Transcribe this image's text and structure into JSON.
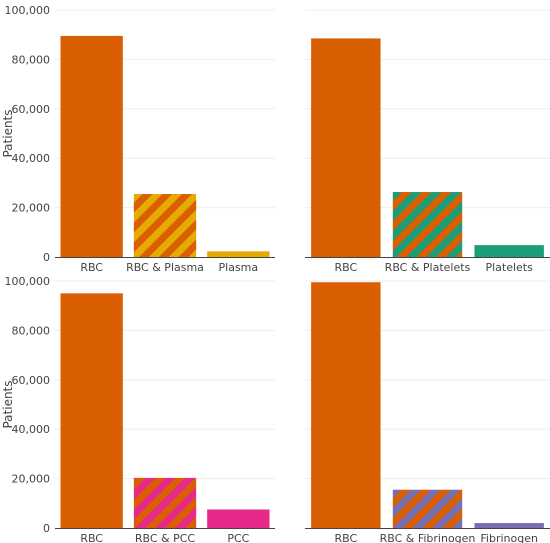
{
  "colors": {
    "rbc": "#d95f02",
    "plasma": "#e6ab02",
    "platelets": "#1b9e77",
    "pcc": "#e7298a",
    "fibrinogen": "#7570b3"
  },
  "chart_data": [
    {
      "type": "bar",
      "categories": [
        "RBC",
        "RBC & Plasma",
        "Plasma"
      ],
      "values": [
        89500,
        25500,
        2300
      ],
      "fills": [
        "rbc",
        "rbc|plasma",
        "plasma"
      ],
      "ylabel": "Patients",
      "ylim": [
        0,
        100000
      ],
      "yticks": [
        0,
        20000,
        40000,
        60000,
        80000,
        100000
      ],
      "ytick_labels": [
        "0",
        "20,000",
        "40,000",
        "60,000",
        "80,000",
        "100,000"
      ],
      "grid": true
    },
    {
      "type": "bar",
      "categories": [
        "RBC",
        "RBC & Platelets",
        "Platelets"
      ],
      "values": [
        88500,
        26300,
        4800
      ],
      "fills": [
        "rbc",
        "rbc|platelets",
        "platelets"
      ],
      "ylabel": "",
      "ylim": [
        0,
        100000
      ],
      "grid": true
    },
    {
      "type": "bar",
      "categories": [
        "RBC",
        "RBC & PCC",
        "PCC"
      ],
      "values": [
        95000,
        20300,
        7500
      ],
      "fills": [
        "rbc",
        "rbc|pcc",
        "pcc"
      ],
      "ylabel": "Patients",
      "ylim": [
        0,
        100000
      ],
      "yticks": [
        0,
        20000,
        40000,
        60000,
        80000,
        100000
      ],
      "ytick_labels": [
        "0",
        "20,000",
        "40,000",
        "60,000",
        "80,000",
        "100,000"
      ],
      "grid": true
    },
    {
      "type": "bar",
      "categories": [
        "RBC",
        "RBC & Fibrinogen",
        "Fibrinogen"
      ],
      "values": [
        99500,
        15500,
        2000
      ],
      "fills": [
        "rbc",
        "rbc|fibrinogen",
        "fibrinogen"
      ],
      "ylabel": "",
      "ylim": [
        0,
        100000
      ],
      "grid": true
    }
  ]
}
